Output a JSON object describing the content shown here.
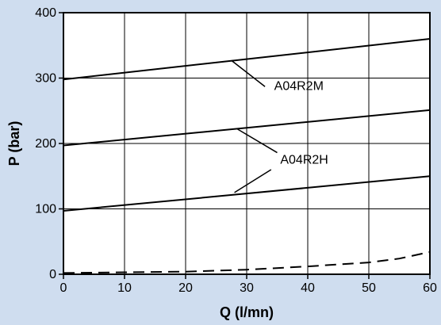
{
  "chart_data": {
    "type": "line",
    "title": "",
    "xlabel": "Q (l/mn)",
    "ylabel": "P (bar)",
    "xlim": [
      0,
      60
    ],
    "ylim": [
      0,
      400
    ],
    "x_ticks": [
      0,
      10,
      20,
      30,
      40,
      50,
      60
    ],
    "y_ticks": [
      0,
      100,
      200,
      300,
      400
    ],
    "grid": true,
    "background_color": "#cfddef",
    "plot_background_color": "#ffffff",
    "series": [
      {
        "style": "solid",
        "color": "#000000",
        "points": [
          [
            0,
            298
          ],
          [
            60,
            360
          ]
        ]
      },
      {
        "style": "solid",
        "color": "#000000",
        "points": [
          [
            0,
            197
          ],
          [
            60,
            251
          ]
        ]
      },
      {
        "style": "solid",
        "color": "#000000",
        "points": [
          [
            0,
            97
          ],
          [
            60,
            150
          ]
        ]
      },
      {
        "style": "dashed",
        "color": "#000000",
        "points": [
          [
            0,
            2
          ],
          [
            10,
            3
          ],
          [
            20,
            4
          ],
          [
            30,
            7
          ],
          [
            40,
            12
          ],
          [
            50,
            18
          ],
          [
            55,
            24
          ],
          [
            60,
            34
          ]
        ]
      }
    ],
    "annotations": [
      {
        "text": "A04R2M",
        "text_at": [
          34.5,
          282
        ],
        "pointers": [
          [
            [
              33,
              287
            ],
            [
              27.5,
              327
            ]
          ]
        ]
      },
      {
        "text": "A04R2H",
        "text_at": [
          35.5,
          169
        ],
        "pointers": [
          [
            [
              35,
              186
            ],
            [
              28.5,
              222
            ]
          ],
          [
            [
              34,
              160
            ],
            [
              28,
              125
            ]
          ]
        ]
      }
    ]
  }
}
